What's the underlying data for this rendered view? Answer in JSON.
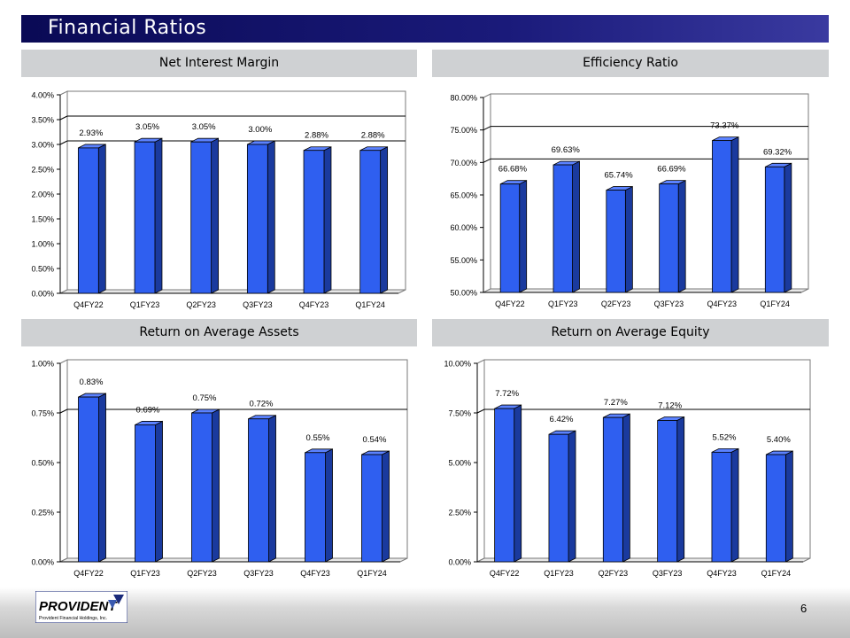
{
  "page": {
    "title": "Financial Ratios",
    "page_number": "6"
  },
  "footer": {
    "logo_name": "PROVIDENT",
    "logo_subtitle": "Provident Financial Holdings, Inc."
  },
  "chart_data": [
    {
      "type": "bar",
      "title": "Net Interest Margin",
      "categories": [
        "Q4FY22",
        "Q1FY23",
        "Q2FY23",
        "Q3FY23",
        "Q4FY23",
        "Q1FY24"
      ],
      "values": [
        2.93,
        3.05,
        3.05,
        3.0,
        2.88,
        2.88
      ],
      "value_labels": [
        "2.93%",
        "3.05%",
        "3.05%",
        "3.00%",
        "2.88%",
        "2.88%"
      ],
      "ylim": [
        0,
        4.0
      ],
      "yticks": [
        0.0,
        0.5,
        1.0,
        1.5,
        2.0,
        2.5,
        3.0,
        3.5,
        4.0
      ],
      "ytick_labels": [
        "0.00%",
        "0.50%",
        "1.00%",
        "1.50%",
        "2.00%",
        "2.50%",
        "3.00%",
        "3.50%",
        "4.00%"
      ],
      "grid": true,
      "gridlines": [
        3.0,
        3.5
      ]
    },
    {
      "type": "bar",
      "title": "Efficiency Ratio",
      "categories": [
        "Q4FY22",
        "Q1FY23",
        "Q2FY23",
        "Q3FY23",
        "Q4FY23",
        "Q1FY24"
      ],
      "values": [
        66.68,
        69.63,
        65.74,
        66.69,
        73.37,
        69.32
      ],
      "value_labels": [
        "66.68%",
        "69.63%",
        "65.74%",
        "66.69%",
        "73.37%",
        "69.32%"
      ],
      "ylim": [
        50,
        80
      ],
      "yticks": [
        50,
        55,
        60,
        65,
        70,
        75,
        80
      ],
      "ytick_labels": [
        "50.00%",
        "55.00%",
        "60.00%",
        "65.00%",
        "70.00%",
        "75.00%",
        "80.00%"
      ],
      "grid": true,
      "gridlines": [
        70,
        75
      ]
    },
    {
      "type": "bar",
      "title": "Return on Average Assets",
      "categories": [
        "Q4FY22",
        "Q1FY23",
        "Q2FY23",
        "Q3FY23",
        "Q4FY23",
        "Q1FY24"
      ],
      "values": [
        0.83,
        0.69,
        0.75,
        0.72,
        0.55,
        0.54
      ],
      "value_labels": [
        "0.83%",
        "0.69%",
        "0.75%",
        "0.72%",
        "0.55%",
        "0.54%"
      ],
      "ylim": [
        0,
        1.0
      ],
      "yticks": [
        0,
        0.25,
        0.5,
        0.75,
        1.0
      ],
      "ytick_labels": [
        "0.00%",
        "0.25%",
        "0.50%",
        "0.75%",
        "1.00%"
      ],
      "grid": true,
      "gridlines": [
        0.75
      ]
    },
    {
      "type": "bar",
      "title": "Return on Average Equity",
      "categories": [
        "Q4FY22",
        "Q1FY23",
        "Q2FY23",
        "Q3FY23",
        "Q4FY23",
        "Q1FY24"
      ],
      "values": [
        7.72,
        6.42,
        7.27,
        7.12,
        5.52,
        5.4
      ],
      "value_labels": [
        "7.72%",
        "6.42%",
        "7.27%",
        "7.12%",
        "5.52%",
        "5.40%"
      ],
      "ylim": [
        0,
        10.0
      ],
      "yticks": [
        0,
        2.5,
        5.0,
        7.5,
        10.0
      ],
      "ytick_labels": [
        "0.00%",
        "2.50%",
        "5.00%",
        "7.50%",
        "10.00%"
      ],
      "grid": true,
      "gridlines": [
        7.5
      ]
    }
  ],
  "colors": {
    "bar_front": "#2f5ff0",
    "bar_side": "#1a3a9e",
    "bar_top": "#5b82ff",
    "header_bg": "#cfd1d3",
    "title_bg": "#0a0a55"
  }
}
